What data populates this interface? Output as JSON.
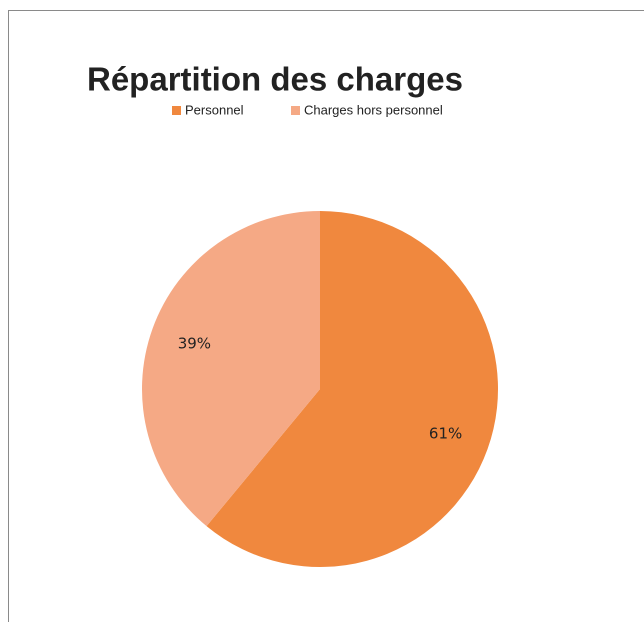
{
  "chart_data": {
    "type": "pie",
    "title": "Répartition des charges",
    "categories": [
      "Personnel",
      "Charges hors personnel"
    ],
    "values": [
      61,
      39
    ],
    "value_labels": [
      "61%",
      "39%"
    ],
    "colors": [
      "#f0883e",
      "#f5a985"
    ],
    "legend": "top"
  }
}
